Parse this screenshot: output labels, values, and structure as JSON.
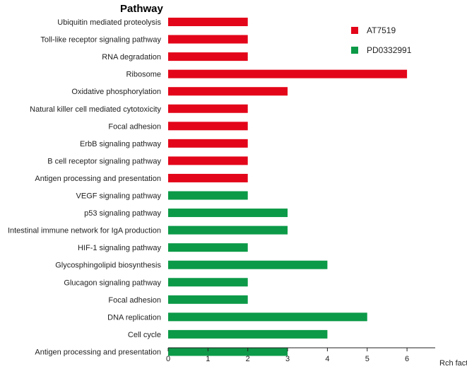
{
  "chart_data": {
    "type": "bar",
    "orientation": "horizontal",
    "ylabel": "Pathway",
    "xlabel": "Rch factor",
    "xlim": [
      0,
      7
    ],
    "xticks": [
      0,
      1,
      2,
      3,
      4,
      5,
      6
    ],
    "series_colors": {
      "AT7519": "#e3061a",
      "PD0332991": "#0c9a48"
    },
    "legend": {
      "position": "top-right",
      "entries": [
        "AT7519",
        "PD0332991"
      ]
    },
    "bars": [
      {
        "category": "Ubiquitin mediated proteolysis",
        "value": 2,
        "series": "AT7519"
      },
      {
        "category": "Toll-like receptor signaling pathway",
        "value": 2,
        "series": "AT7519"
      },
      {
        "category": "RNA degradation",
        "value": 2,
        "series": "AT7519"
      },
      {
        "category": "Ribosome",
        "value": 6,
        "series": "AT7519"
      },
      {
        "category": "Oxidative phosphorylation",
        "value": 3,
        "series": "AT7519"
      },
      {
        "category": "Natural killer cell mediated cytotoxicity",
        "value": 2,
        "series": "AT7519"
      },
      {
        "category": "Focal adhesion",
        "value": 2,
        "series": "AT7519"
      },
      {
        "category": "ErbB signaling pathway",
        "value": 2,
        "series": "AT7519"
      },
      {
        "category": "B cell receptor signaling pathway",
        "value": 2,
        "series": "AT7519"
      },
      {
        "category": "Antigen processing and presentation",
        "value": 2,
        "series": "AT7519"
      },
      {
        "category": "VEGF signaling pathway",
        "value": 2,
        "series": "PD0332991"
      },
      {
        "category": "p53 signaling pathway",
        "value": 3,
        "series": "PD0332991"
      },
      {
        "category": "Intestinal immune network for IgA production",
        "value": 3,
        "series": "PD0332991"
      },
      {
        "category": "HIF-1 signaling pathway",
        "value": 2,
        "series": "PD0332991"
      },
      {
        "category": "Glycosphingolipid biosynthesis",
        "value": 4,
        "series": "PD0332991"
      },
      {
        "category": "Glucagon signaling pathway",
        "value": 2,
        "series": "PD0332991"
      },
      {
        "category": "Focal adhesion",
        "value": 2,
        "series": "PD0332991"
      },
      {
        "category": "DNA replication",
        "value": 5,
        "series": "PD0332991"
      },
      {
        "category": "Cell cycle",
        "value": 4,
        "series": "PD0332991"
      },
      {
        "category": "Antigen processing and presentation",
        "value": 3,
        "series": "PD0332991"
      }
    ]
  }
}
